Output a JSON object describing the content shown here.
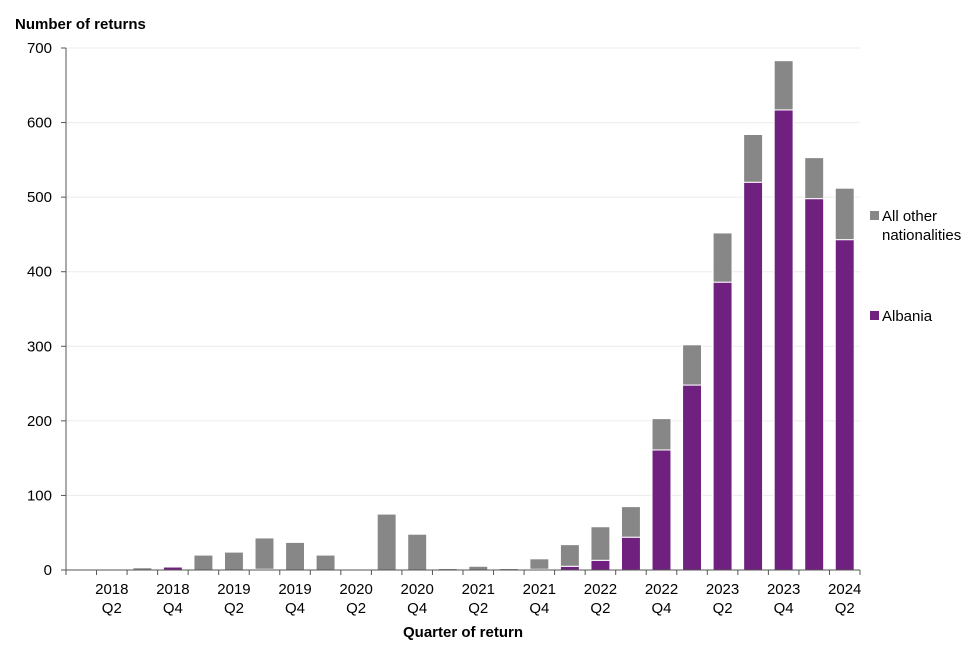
{
  "chart_data": {
    "type": "stacked_bar",
    "y_axis_label": "Number of returns",
    "x_axis_label": "Quarter of return",
    "categories": [
      null,
      "2018 Q2",
      null,
      "2018 Q4",
      null,
      "2019 Q2",
      null,
      "2019 Q4",
      null,
      "2020 Q2",
      null,
      "2020 Q4",
      null,
      "2021 Q2",
      null,
      "2021 Q4",
      null,
      "2022 Q2",
      null,
      "2022 Q4",
      null,
      "2023 Q2",
      null,
      "2023 Q4",
      null,
      "2024 Q2"
    ],
    "series": [
      {
        "name": "Albania",
        "color": "#70207f",
        "values": [
          0,
          0,
          0,
          4,
          0,
          0,
          1,
          0,
          0,
          0,
          0,
          0,
          0,
          0,
          0,
          1,
          5,
          13,
          44,
          161,
          248,
          386,
          520,
          617,
          498,
          443
        ]
      },
      {
        "name": "All other nationalities",
        "color": "#878787",
        "values": [
          1,
          1,
          3,
          1,
          20,
          24,
          42,
          37,
          20,
          0,
          75,
          48,
          2,
          5,
          2,
          14,
          29,
          45,
          41,
          42,
          54,
          66,
          64,
          66,
          55,
          69
        ]
      }
    ],
    "ylim": [
      0,
      700
    ],
    "yticks": [
      0,
      100,
      200,
      300,
      400,
      500,
      600,
      700
    ],
    "grid": true
  }
}
